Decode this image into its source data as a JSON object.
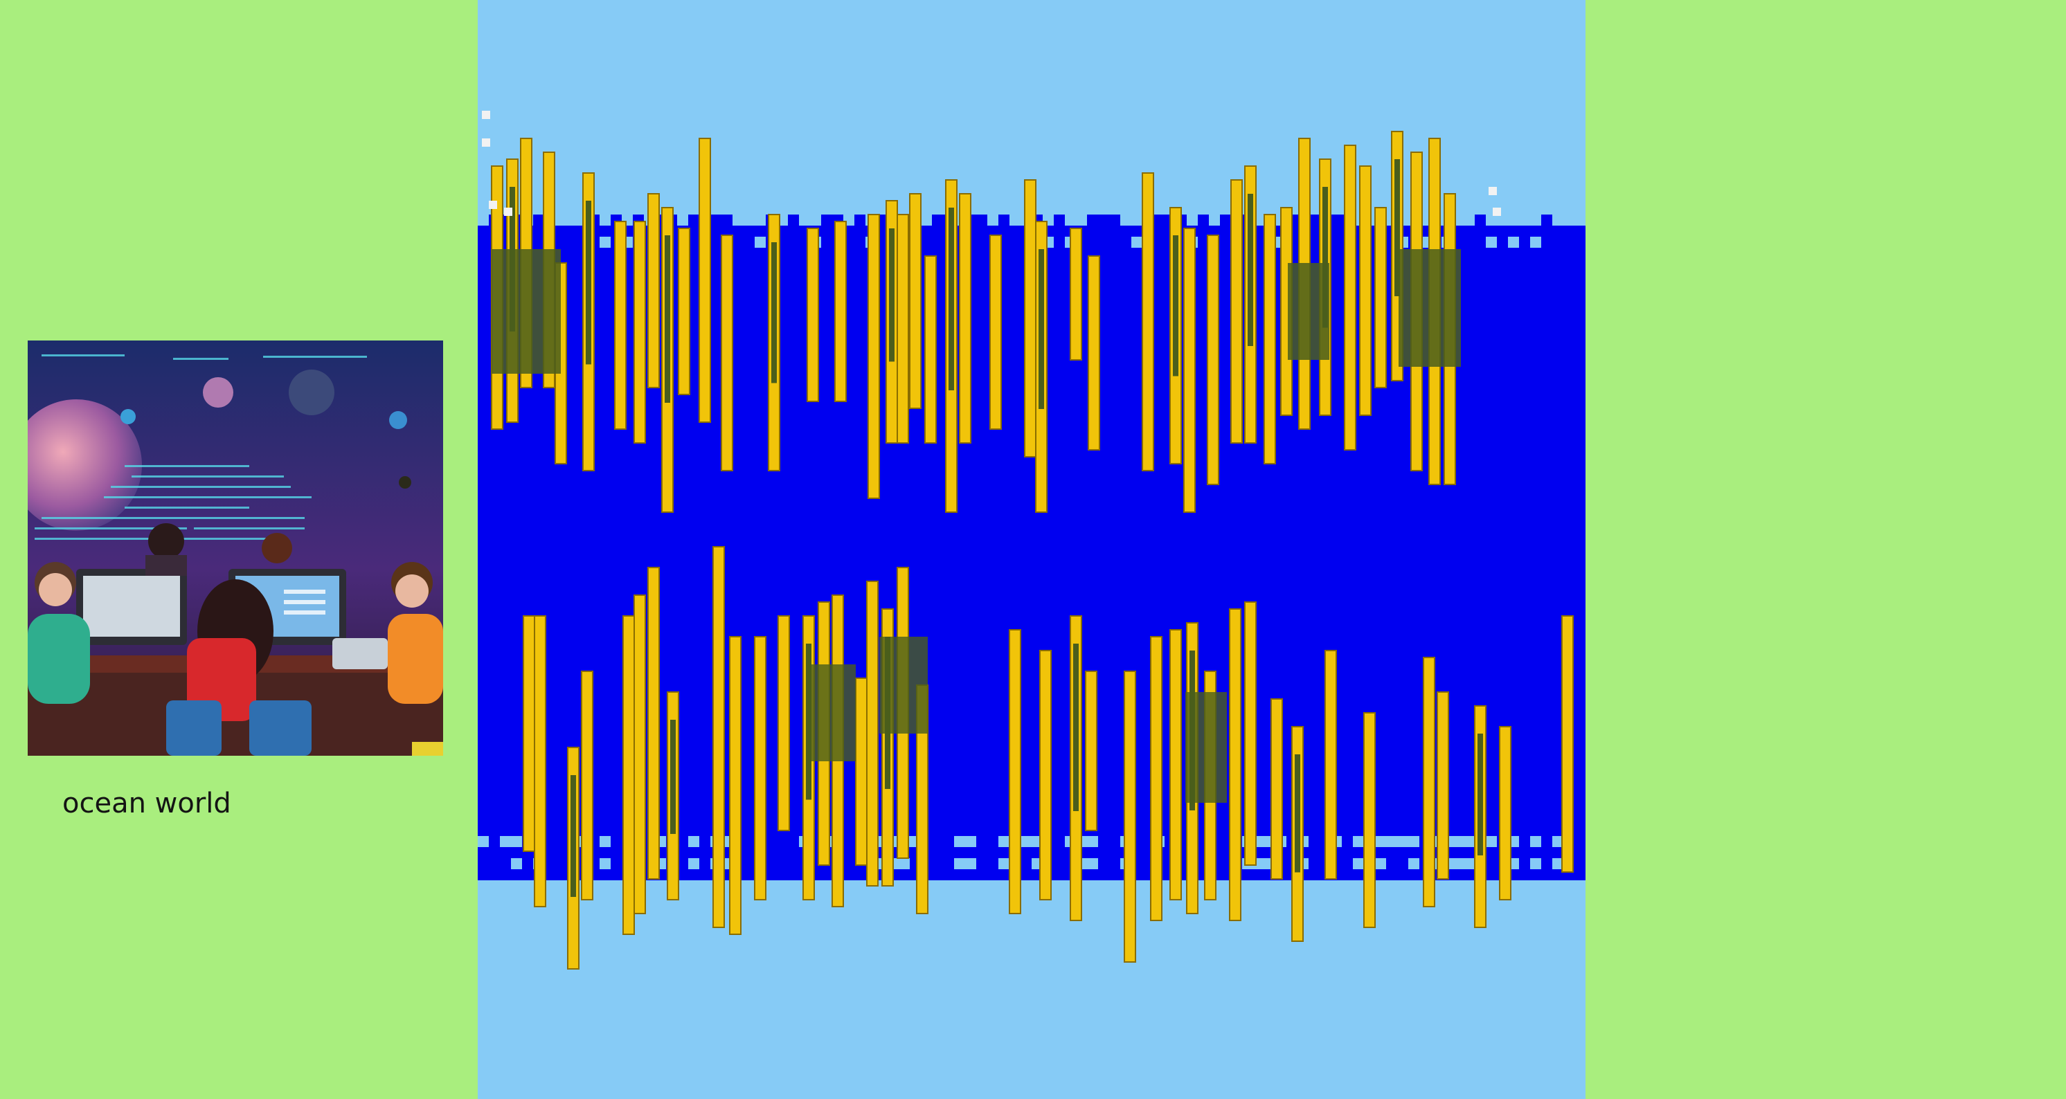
{
  "sidebar": {
    "preview_image_icon": "space-hackathon-illustration",
    "world_name": "ocean world"
  },
  "game": {
    "sky_color": "#86cbf6",
    "water_color": "#0000f0",
    "coral_color": "#f1c40a",
    "coral_edge_color": "#8a6d00",
    "kelp_color": "#4a5e1c",
    "bubble_color": "#f2f2f2",
    "background_color": "#a9ee7e"
  }
}
